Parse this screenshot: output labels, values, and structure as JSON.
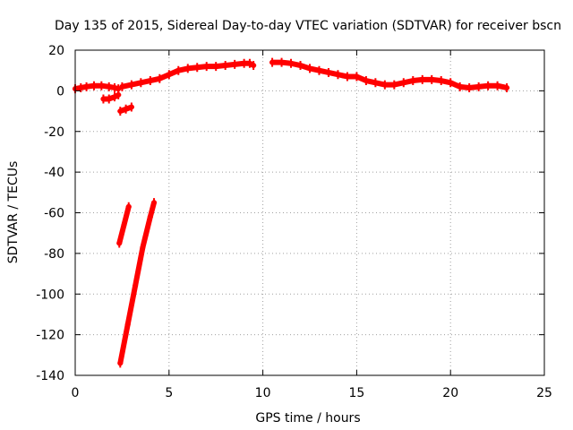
{
  "chart_data": {
    "type": "scatter",
    "title": "Day 135 of 2015, Sidereal Day-to-day VTEC variation (SDTVAR) for receiver bscn",
    "xlabel": "GPS time / hours",
    "ylabel": "SDTVAR / TECUs",
    "xlim": [
      0,
      25
    ],
    "ylim": [
      -140,
      20
    ],
    "xticks": [
      0,
      5,
      10,
      15,
      20,
      25
    ],
    "yticks": [
      -140,
      -120,
      -100,
      -80,
      -60,
      -40,
      -20,
      0,
      20
    ],
    "grid": true,
    "series": [
      {
        "name": "SDTVAR",
        "color": "#ff0000",
        "segments": [
          {
            "x": [
              0.0,
              0.3,
              0.6,
              1.0,
              1.4,
              1.8,
              2.1,
              2.3
            ],
            "y": [
              1,
              1.5,
              2,
              2.5,
              2.5,
              2,
              1.5,
              1
            ]
          },
          {
            "x": [
              1.5,
              1.8,
              2.1,
              2.3
            ],
            "y": [
              -4,
              -4,
              -3,
              -2
            ]
          },
          {
            "x": [
              2.4,
              2.7,
              3.0
            ],
            "y": [
              -10,
              -9,
              -8
            ]
          },
          {
            "x": [
              2.5,
              3.0,
              3.5,
              4.0,
              4.5,
              5.0,
              5.5,
              6.0,
              6.5,
              7.0,
              7.5,
              8.0,
              8.5,
              9.0,
              9.3,
              9.5
            ],
            "y": [
              2,
              3,
              4,
              5,
              6,
              8,
              10,
              11,
              11.5,
              12,
              12,
              12.5,
              13,
              13.5,
              13.5,
              12.5
            ]
          },
          {
            "x": [
              10.5,
              11.0,
              11.5,
              12.0,
              12.5,
              13.0,
              13.5,
              14.0,
              14.5,
              15.0,
              15.5,
              16.0,
              16.5,
              17.0,
              17.5,
              18.0,
              18.5,
              19.0,
              19.5,
              20.0,
              20.5,
              21.0,
              21.5,
              22.0,
              22.5,
              23.0
            ],
            "y": [
              14,
              14,
              13.5,
              12.5,
              11,
              10,
              9,
              8,
              7,
              7,
              5,
              4,
              3,
              3,
              4,
              5,
              5.5,
              5.5,
              5,
              4,
              2,
              1.5,
              2,
              2.5,
              2.5,
              1.5
            ]
          },
          {
            "x": [
              2.35,
              2.6,
              2.85
            ],
            "y": [
              -75,
              -66,
              -57
            ]
          },
          {
            "x": [
              2.4,
              2.8,
              3.2,
              3.6,
              4.0,
              4.2
            ],
            "y": [
              -134,
              -115,
              -96,
              -77,
              -62,
              -55
            ]
          }
        ]
      }
    ]
  }
}
